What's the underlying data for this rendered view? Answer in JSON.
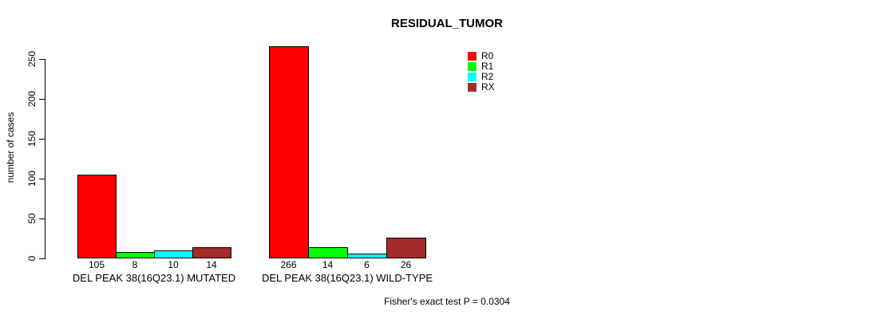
{
  "chart_data": {
    "type": "bar",
    "title": "RESIDUAL_TUMOR",
    "xlabel": "",
    "ylabel": "number of cases",
    "annotation": "Fisher's exact test P = 0.0304",
    "ylim": [
      0,
      250
    ],
    "yticks": [
      0,
      50,
      100,
      150,
      200,
      250
    ],
    "grid": false,
    "legend_position": "top-right",
    "categories": [
      "DEL PEAK 38(16Q23.1) MUTATED",
      "DEL PEAK 38(16Q23.1) WILD-TYPE"
    ],
    "series": [
      {
        "name": "R0",
        "color": "#FF0000",
        "values": [
          105,
          266
        ]
      },
      {
        "name": "R1",
        "color": "#00FF00",
        "values": [
          8,
          14
        ]
      },
      {
        "name": "R2",
        "color": "#00FFFF",
        "values": [
          10,
          6
        ]
      },
      {
        "name": "RX",
        "color": "#A52A2A",
        "values": [
          14,
          26
        ]
      }
    ],
    "bar_value_labels": [
      [
        105,
        8,
        10,
        14
      ],
      [
        266,
        14,
        6,
        26
      ]
    ],
    "colors": {
      "background": "#FFFFFF",
      "text": "#000000",
      "axis": "#000000",
      "bar_border": "#000000"
    }
  }
}
